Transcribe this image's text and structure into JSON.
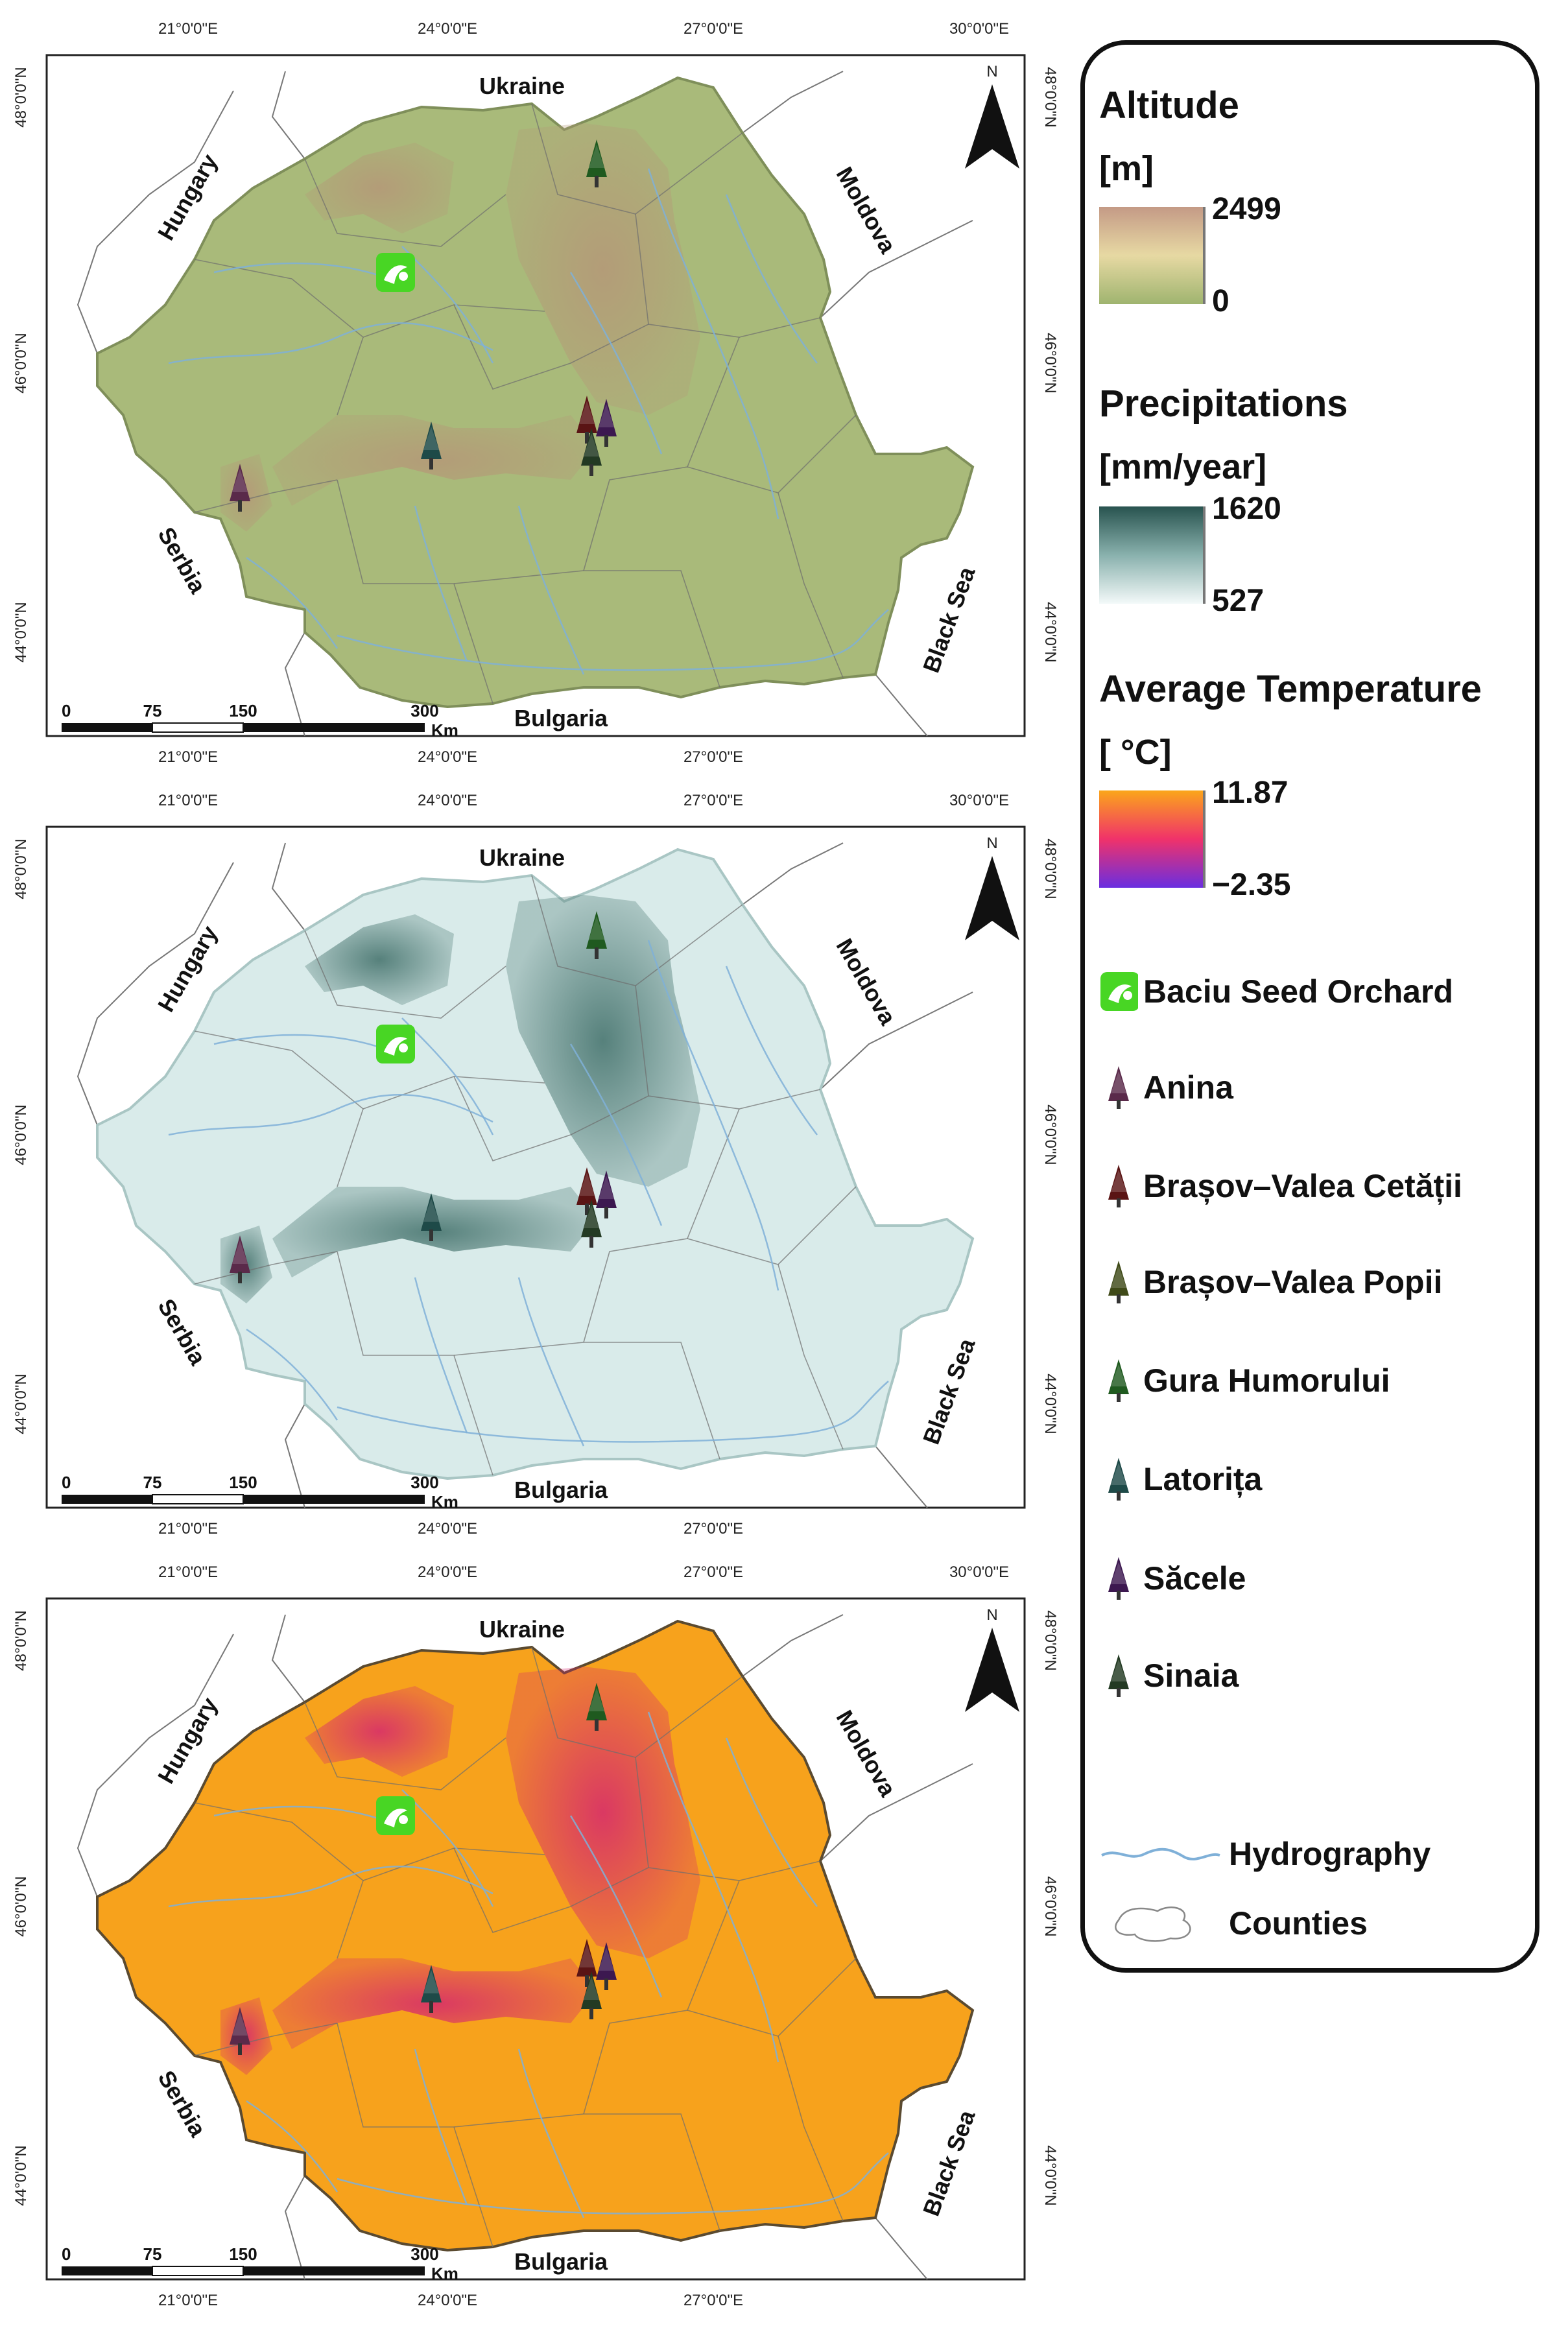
{
  "map": {
    "coords": {
      "lon_top": [
        "21°0'0\"E",
        "24°0'0\"E",
        "27°0'0\"E",
        "30°0'0\"E"
      ],
      "lon_bottom": [
        "21°0'0\"E",
        "24°0'0\"E",
        "27°0'0\"E"
      ],
      "lat": [
        "48°0'0\"N",
        "46°0'0\"N",
        "44°0'0\"N"
      ]
    },
    "countries": {
      "ukraine": "Ukraine",
      "hungary": "Hungary",
      "moldova": "Moldova",
      "serbia": "Serbia",
      "bulgaria": "Bulgaria",
      "black_sea": "Black Sea"
    },
    "north": "N",
    "scale_ticks": [
      "0",
      "75",
      "150",
      "300"
    ],
    "scale_unit": "Km",
    "panels": [
      {
        "id": "altitude",
        "fill": "#a9ba7a",
        "high": "#b59777",
        "border": "#7f8f5a"
      },
      {
        "id": "precipitation",
        "fill": "#d9ebea",
        "high": "#3f6e68",
        "border": "#a9c6c4"
      },
      {
        "id": "temperature",
        "fill": "#f7a21c",
        "high": "#d5266f",
        "border": "#5a4a30"
      }
    ]
  },
  "legend": {
    "altitude": {
      "title": "Altitude",
      "unit": "[m]",
      "max": "2499",
      "min": "0",
      "colors": [
        "#c49a86",
        "#e7d9a3",
        "#9fb46f"
      ]
    },
    "precipitation": {
      "title": "Precipitations",
      "unit": "[mm/year]",
      "max": "1620",
      "min": "527",
      "colors": [
        "#28534f",
        "#89b1ad",
        "#f3f9f9"
      ]
    },
    "temperature": {
      "title": "Average Temperature",
      "unit": "[ °C]",
      "max": "11.87",
      "min": "−2.35",
      "colors": [
        "#fba61a",
        "#f0326a",
        "#6a2ee0"
      ]
    },
    "items": [
      {
        "label": "Baciu Seed Orchard",
        "icon": "orchard-icon",
        "color": "#48d624"
      },
      {
        "label": "Anina",
        "icon": "conifer-icon",
        "color": "#5a2a4a"
      },
      {
        "label": "Brașov–Valea Cetății",
        "icon": "conifer-icon",
        "color": "#5a1414"
      },
      {
        "label": "Brașov–Valea Popii",
        "icon": "conifer-icon",
        "color": "#3f4a18"
      },
      {
        "label": "Gura Humorului",
        "icon": "conifer-icon",
        "color": "#1f5a1f"
      },
      {
        "label": "Latorița",
        "icon": "conifer-icon",
        "color": "#1e4a48"
      },
      {
        "label": "Săcele",
        "icon": "conifer-icon",
        "color": "#3c1850"
      },
      {
        "label": "Sinaia",
        "icon": "conifer-icon",
        "color": "#233a23"
      }
    ],
    "hydrography": "Hydrography",
    "counties": "Counties",
    "hydro_color": "#7fb0d8"
  }
}
